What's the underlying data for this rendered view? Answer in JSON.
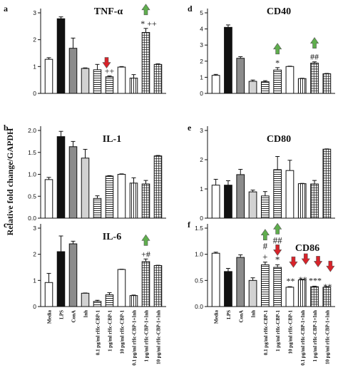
{
  "figure": {
    "ylabel": "Relative fold change/GAPDH",
    "colors": {
      "black": "#111111",
      "white": "#ffffff",
      "gray": "#8c8c8c",
      "light_gray": "#d2d2d2",
      "up_arrow": "#5fae4d",
      "down_arrow": "#d8232a"
    }
  },
  "chart_data": [
    {
      "type": "bar",
      "panel": "a",
      "title": "TNF-α",
      "categories": [
        "Media",
        "LPS",
        "ConA",
        "Inh",
        "0.1 pg/ml rHc-CBP-1",
        "1 pg/ml rHc-CBP-1",
        "10 pg/ml rHc-CBP-1",
        "0.1 pg/ml rHc-CBP-1+Inh",
        "1 pg/ml rHc-CBP-1+Inh",
        "10 pg/ml rHc-CBP-1+Inh"
      ],
      "values": [
        1.27,
        2.78,
        1.68,
        0.93,
        0.88,
        0.62,
        0.98,
        0.57,
        2.27,
        1.08
      ],
      "errors": [
        0.06,
        0.07,
        0.38,
        0.02,
        0.2,
        0.03,
        0.02,
        0.13,
        0.15,
        0.02
      ],
      "ylim": [
        0,
        3
      ],
      "yticks": [
        0,
        1,
        2,
        3
      ],
      "annotations": [
        {
          "bar": 5,
          "text": "++",
          "arrow": "down"
        },
        {
          "bar": 8,
          "text": "* ++",
          "arrow": "up"
        }
      ]
    },
    {
      "type": "bar",
      "panel": "b",
      "title": "IL-1",
      "categories": [
        "Media",
        "LPS",
        "ConA",
        "Inh",
        "0.1 pg/ml rHc-CBP-1",
        "1 pg/ml rHc-CBP-1",
        "10 pg/ml rHc-CBP-1",
        "0.1 pg/ml rHc-CBP-1+Inh",
        "1 pg/ml rHc-CBP-1+Inh",
        "10 pg/ml rHc-CBP-1+Inh"
      ],
      "values": [
        0.88,
        1.86,
        1.63,
        1.37,
        0.45,
        0.96,
        1.0,
        0.8,
        0.78,
        1.42
      ],
      "errors": [
        0.05,
        0.12,
        0.12,
        0.2,
        0.06,
        0.01,
        0.01,
        0.12,
        0.08,
        0.01
      ],
      "ylim": [
        0,
        2
      ],
      "yticks": [
        0.0,
        0.5,
        1.0,
        1.5,
        2.0
      ],
      "annotations": []
    },
    {
      "type": "bar",
      "panel": "c",
      "title": "IL-6",
      "categories": [
        "Media",
        "LPS",
        "ConA",
        "Inh",
        "0.1 pg/ml rHc-CBP-1",
        "1 pg/ml rHc-CBP-1",
        "10 pg/ml rHc-CBP-1",
        "0.1 pg/ml rHc-CBP-1+Inh",
        "1 pg/ml rHc-CBP-1+Inh",
        "10 pg/ml rHc-CBP-1+Inh"
      ],
      "values": [
        0.92,
        2.1,
        2.4,
        0.51,
        0.2,
        0.45,
        1.42,
        0.42,
        1.72,
        1.57
      ],
      "errors": [
        0.35,
        0.6,
        0.1,
        0.01,
        0.04,
        0.08,
        0.01,
        0.02,
        0.1,
        0.01
      ],
      "ylim": [
        0,
        3
      ],
      "yticks": [
        0,
        1,
        2,
        3
      ],
      "annotations": [
        {
          "bar": 8,
          "text": "+#",
          "arrow": "up"
        }
      ]
    },
    {
      "type": "bar",
      "panel": "d",
      "title": "CD40",
      "categories": [
        "Media",
        "LPS",
        "ConA",
        "Inh",
        "0.1 pg/ml rHc-CBP-1",
        "1 pg/ml rHc-CBP-1",
        "10 pg/ml rHc-CBP-1",
        "0.1 pg/ml rHc-CBP-1+Inh",
        "1 pg/ml rHc-CBP-1+Inh",
        "10 pg/ml rHc-CBP-1+Inh"
      ],
      "values": [
        1.12,
        4.1,
        2.18,
        0.75,
        0.72,
        1.45,
        1.67,
        0.92,
        1.88,
        1.22
      ],
      "errors": [
        0.06,
        0.15,
        0.1,
        0.08,
        0.07,
        0.15,
        0.02,
        0.02,
        0.08,
        0.02
      ],
      "ylim": [
        0,
        5
      ],
      "yticks": [
        0,
        1,
        2,
        3,
        4,
        5
      ],
      "annotations": [
        {
          "bar": 5,
          "text": "*",
          "arrow": "up"
        },
        {
          "bar": 8,
          "text": "##",
          "arrow": "up"
        }
      ]
    },
    {
      "type": "bar",
      "panel": "e",
      "title": "CD80",
      "categories": [
        "Media",
        "LPS",
        "ConA",
        "Inh",
        "0.1 pg/ml rHc-CBP-1",
        "1 pg/ml rHc-CBP-1",
        "10 pg/ml rHc-CBP-1",
        "0.1 pg/ml rHc-CBP-1+Inh",
        "1 pg/ml rHc-CBP-1+Inh",
        "10 pg/ml rHc-CBP-1+Inh"
      ],
      "values": [
        1.13,
        1.13,
        1.49,
        0.9,
        0.76,
        1.66,
        1.63,
        1.18,
        1.17,
        2.36
      ],
      "errors": [
        0.2,
        0.15,
        0.18,
        0.06,
        0.15,
        0.45,
        0.35,
        0.01,
        0.12,
        0.01
      ],
      "ylim": [
        0,
        3
      ],
      "yticks": [
        0,
        1,
        2,
        3
      ],
      "annotations": []
    },
    {
      "type": "bar",
      "panel": "f",
      "title": "CD86",
      "categories": [
        "Media",
        "LPS",
        "ConA",
        "Inh",
        "0.1 pg/ml rHc-CBP-1",
        "1 pg/ml rHc-CBP-1",
        "10 pg/ml rHc-CBP-1",
        "0.1 pg/ml rHc-CBP-1+Inh",
        "1 pg/ml rHc-CBP-1+Inh",
        "10 pg/ml rHc-CBP-1+Inh"
      ],
      "values": [
        1.02,
        0.67,
        0.94,
        0.5,
        0.8,
        0.75,
        0.37,
        0.51,
        0.38,
        0.37
      ],
      "errors": [
        0.02,
        0.06,
        0.05,
        0.05,
        0.05,
        0.05,
        0.01,
        0.01,
        0.01,
        0.01
      ],
      "ylim": [
        0,
        1.5
      ],
      "yticks": [
        0.0,
        0.5,
        1.0,
        1.5
      ],
      "annotations": [
        {
          "bar": 4,
          "text": "#",
          "arrow": "up",
          "text2": "+"
        },
        {
          "bar": 5,
          "text": "##",
          "arrow": "up",
          "text2": "*",
          "arrow2": "down"
        },
        {
          "bar": 6,
          "text": "**",
          "arrow": "down"
        },
        {
          "bar": 7,
          "text": "**",
          "arrow": "down"
        },
        {
          "bar": 8,
          "text": "***",
          "arrow": "down"
        },
        {
          "bar": 9,
          "text": "**",
          "arrow": "down"
        }
      ]
    }
  ]
}
